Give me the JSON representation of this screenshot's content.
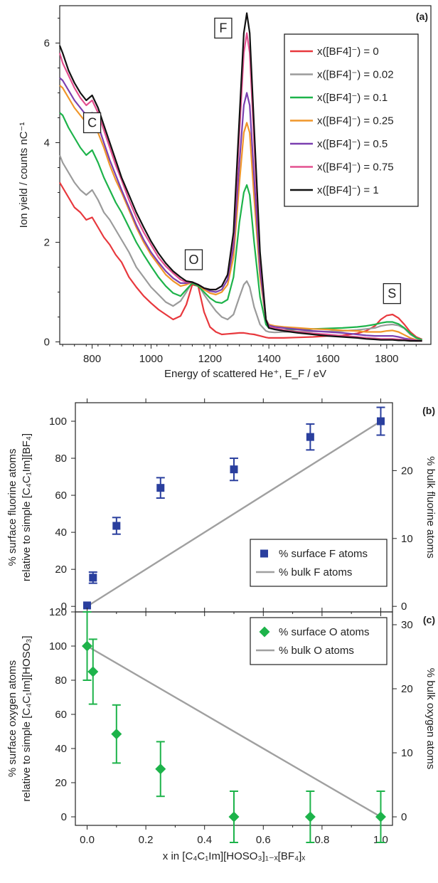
{
  "chart_data": [
    {
      "panel": "(a)",
      "type": "line",
      "xlabel": "Energy of scattered He⁺, E_F / eV",
      "ylabel": "Ion yield / counts nC⁻¹",
      "xlim": [
        690,
        1950
      ],
      "ylim": [
        -0.05,
        6.75
      ],
      "xticks": [
        800,
        1000,
        1200,
        1400,
        1600,
        1800
      ],
      "yticks": [
        0,
        2,
        4,
        6
      ],
      "legend_position": "top-right",
      "peak_labels": [
        {
          "text": "C",
          "x": 800,
          "y": 4.4
        },
        {
          "text": "O",
          "x": 1145,
          "y": 1.65
        },
        {
          "text": "F",
          "x": 1245,
          "y": 6.3
        },
        {
          "text": "S",
          "x": 1818,
          "y": 0.97
        }
      ],
      "x": [
        690,
        700,
        720,
        740,
        760,
        780,
        800,
        820,
        840,
        860,
        880,
        900,
        925,
        950,
        975,
        1000,
        1025,
        1050,
        1075,
        1100,
        1120,
        1140,
        1160,
        1180,
        1200,
        1220,
        1240,
        1260,
        1280,
        1300,
        1315,
        1325,
        1335,
        1350,
        1370,
        1390,
        1400,
        1420,
        1450,
        1500,
        1550,
        1600,
        1650,
        1700,
        1730,
        1760,
        1780,
        1800,
        1820,
        1840,
        1860,
        1880,
        1900,
        1920
      ],
      "series": [
        {
          "name": "x([BF4]⁻) = 0",
          "color": "#e8383d",
          "values": [
            3.2,
            3.1,
            2.9,
            2.7,
            2.6,
            2.45,
            2.5,
            2.3,
            2.1,
            1.95,
            1.75,
            1.6,
            1.3,
            1.1,
            0.92,
            0.78,
            0.65,
            0.55,
            0.45,
            0.52,
            0.75,
            1.15,
            1.12,
            0.6,
            0.3,
            0.2,
            0.15,
            0.16,
            0.17,
            0.18,
            0.18,
            0.17,
            0.16,
            0.15,
            0.12,
            0.09,
            0.08,
            0.08,
            0.08,
            0.09,
            0.1,
            0.12,
            0.13,
            0.17,
            0.22,
            0.32,
            0.45,
            0.53,
            0.55,
            0.48,
            0.35,
            0.2,
            0.1,
            0.05
          ]
        },
        {
          "name": "x([BF4]⁻) = 0.02",
          "color": "#9b9b9b",
          "values": [
            3.75,
            3.6,
            3.4,
            3.2,
            3.05,
            2.95,
            3.05,
            2.85,
            2.6,
            2.45,
            2.25,
            2.05,
            1.8,
            1.5,
            1.3,
            1.1,
            0.95,
            0.8,
            0.72,
            0.82,
            1.0,
            1.2,
            1.15,
            0.95,
            0.78,
            0.62,
            0.5,
            0.45,
            0.55,
            0.9,
            1.15,
            1.22,
            1.1,
            0.7,
            0.35,
            0.22,
            0.2,
            0.19,
            0.2,
            0.21,
            0.21,
            0.21,
            0.22,
            0.24,
            0.26,
            0.28,
            0.32,
            0.34,
            0.35,
            0.33,
            0.27,
            0.15,
            0.08,
            0.04
          ]
        },
        {
          "name": "x([BF4]⁻) = 0.1",
          "color": "#1db34a",
          "values": [
            4.6,
            4.55,
            4.3,
            4.1,
            3.9,
            3.75,
            3.85,
            3.6,
            3.3,
            3.05,
            2.8,
            2.6,
            2.3,
            2.0,
            1.75,
            1.52,
            1.3,
            1.12,
            0.98,
            0.92,
            1.05,
            1.18,
            1.12,
            1.0,
            0.88,
            0.8,
            0.78,
            0.85,
            1.3,
            2.4,
            3.0,
            3.15,
            2.95,
            2.0,
            0.9,
            0.35,
            0.28,
            0.26,
            0.24,
            0.25,
            0.26,
            0.27,
            0.28,
            0.3,
            0.32,
            0.35,
            0.38,
            0.4,
            0.4,
            0.36,
            0.28,
            0.17,
            0.08,
            0.04
          ]
        },
        {
          "name": "x([BF4]⁻) = 0.25",
          "color": "#f0962a",
          "values": [
            5.15,
            5.1,
            4.9,
            4.7,
            4.55,
            4.4,
            4.45,
            4.2,
            3.9,
            3.55,
            3.25,
            3.0,
            2.65,
            2.3,
            2.0,
            1.75,
            1.55,
            1.35,
            1.22,
            1.12,
            1.15,
            1.2,
            1.15,
            1.05,
            0.98,
            0.95,
            1.0,
            1.15,
            1.7,
            3.2,
            4.2,
            4.4,
            4.2,
            2.9,
            1.3,
            0.45,
            0.35,
            0.32,
            0.3,
            0.28,
            0.26,
            0.25,
            0.23,
            0.22,
            0.2,
            0.2,
            0.2,
            0.22,
            0.23,
            0.2,
            0.14,
            0.08,
            0.04,
            0.02
          ]
        },
        {
          "name": "x([BF4]⁻) = 0.5",
          "color": "#7b3fb0",
          "values": [
            5.3,
            5.25,
            5.05,
            4.85,
            4.7,
            4.55,
            4.6,
            4.35,
            4.0,
            3.65,
            3.35,
            3.05,
            2.7,
            2.35,
            2.05,
            1.8,
            1.6,
            1.42,
            1.28,
            1.18,
            1.18,
            1.2,
            1.15,
            1.08,
            1.02,
            1.0,
            1.05,
            1.25,
            1.9,
            3.6,
            4.75,
            5.0,
            4.75,
            3.3,
            1.45,
            0.45,
            0.33,
            0.3,
            0.28,
            0.25,
            0.22,
            0.2,
            0.18,
            0.15,
            0.13,
            0.12,
            0.12,
            0.12,
            0.12,
            0.1,
            0.07,
            0.05,
            0.03,
            0.02
          ]
        },
        {
          "name": "x([BF4]⁻) = 0.75",
          "color": "#e3508f",
          "values": [
            5.8,
            5.6,
            5.35,
            5.1,
            4.9,
            4.75,
            4.85,
            4.6,
            4.25,
            3.9,
            3.55,
            3.25,
            2.85,
            2.5,
            2.2,
            1.95,
            1.7,
            1.52,
            1.38,
            1.25,
            1.2,
            1.2,
            1.15,
            1.08,
            1.05,
            1.05,
            1.12,
            1.35,
            2.1,
            4.2,
            5.8,
            6.2,
            5.8,
            4.0,
            1.7,
            0.45,
            0.3,
            0.27,
            0.24,
            0.2,
            0.17,
            0.15,
            0.12,
            0.1,
            0.08,
            0.07,
            0.06,
            0.06,
            0.06,
            0.05,
            0.04,
            0.03,
            0.02,
            0.02
          ]
        },
        {
          "name": "x([BF4]⁻) = 1",
          "color": "#111111",
          "values": [
            5.95,
            5.8,
            5.45,
            5.2,
            5.0,
            4.85,
            4.95,
            4.7,
            4.35,
            4.0,
            3.65,
            3.3,
            2.95,
            2.6,
            2.3,
            2.02,
            1.78,
            1.58,
            1.42,
            1.3,
            1.22,
            1.2,
            1.15,
            1.08,
            1.05,
            1.05,
            1.12,
            1.35,
            2.2,
            4.5,
            6.2,
            6.6,
            6.2,
            4.3,
            1.8,
            0.45,
            0.28,
            0.25,
            0.22,
            0.18,
            0.15,
            0.12,
            0.1,
            0.08,
            0.06,
            0.05,
            0.04,
            0.04,
            0.04,
            0.03,
            0.03,
            0.02,
            0.02,
            0.02
          ]
        }
      ]
    },
    {
      "panel": "(b)",
      "type": "scatter",
      "ylabel_lines": [
        "% surface fluorine atoms",
        "relative to simple [C₄C₁Im][BF₄]"
      ],
      "y2label": "% bulk fluorine atoms",
      "xlim": [
        -0.04,
        1.04
      ],
      "ylim": [
        -3,
        110
      ],
      "y2lim": [
        -0.82,
        30.0
      ],
      "yticks": [
        0,
        20,
        40,
        60,
        80,
        100
      ],
      "y2ticks": [
        0,
        10,
        20
      ],
      "legend_position": "lower-right",
      "series": [
        {
          "name": "% surface F atoms",
          "type": "scatter",
          "color": "#2a3f9e",
          "x": [
            0,
            0.02,
            0.1,
            0.25,
            0.5,
            0.76,
            1.0
          ],
          "y": [
            0.5,
            15.5,
            43.5,
            64,
            74,
            91.5,
            100
          ],
          "err": [
            0,
            3,
            4.5,
            5.5,
            6,
            7,
            7.5
          ]
        },
        {
          "name": "% bulk F atoms",
          "type": "line",
          "color": "#a0a0a0",
          "x": [
            0,
            1.0
          ],
          "y": [
            0,
            100
          ]
        }
      ]
    },
    {
      "panel": "(c)",
      "type": "scatter",
      "xlabel": "x in [C₄C₁Im][HOSO₃]₁₋ₓ[BF₄]ₓ",
      "ylabel_lines": [
        "% surface oxygen atoms",
        "relative to simple [C₄C₁Im][HOSO₃]"
      ],
      "y2label": "% bulk oxygen atoms",
      "xlim": [
        -0.04,
        1.04
      ],
      "ylim": [
        -5,
        120
      ],
      "y2lim": [
        -1.33,
        32.0
      ],
      "xticks": [
        0.0,
        0.2,
        0.4,
        0.6,
        0.8,
        1.0
      ],
      "xticklabels": [
        "0.0",
        "0.2",
        "0.4",
        "0.6",
        "0.8",
        "1.0"
      ],
      "yticks": [
        0,
        20,
        40,
        60,
        80,
        100,
        120
      ],
      "y2ticks": [
        0,
        10,
        20,
        30
      ],
      "legend_position": "top-right",
      "series": [
        {
          "name": "% surface O atoms",
          "type": "scatter",
          "color": "#1db34a",
          "x": [
            0,
            0.02,
            0.1,
            0.25,
            0.5,
            0.76,
            1.0
          ],
          "y": [
            100,
            85,
            48.5,
            28,
            0,
            0,
            0
          ],
          "err": [
            20,
            19,
            17,
            16,
            15,
            15,
            15
          ]
        },
        {
          "name": "% bulk O atoms",
          "type": "line",
          "color": "#a0a0a0",
          "x": [
            0,
            1.0
          ],
          "y": [
            100,
            0
          ]
        }
      ]
    }
  ]
}
